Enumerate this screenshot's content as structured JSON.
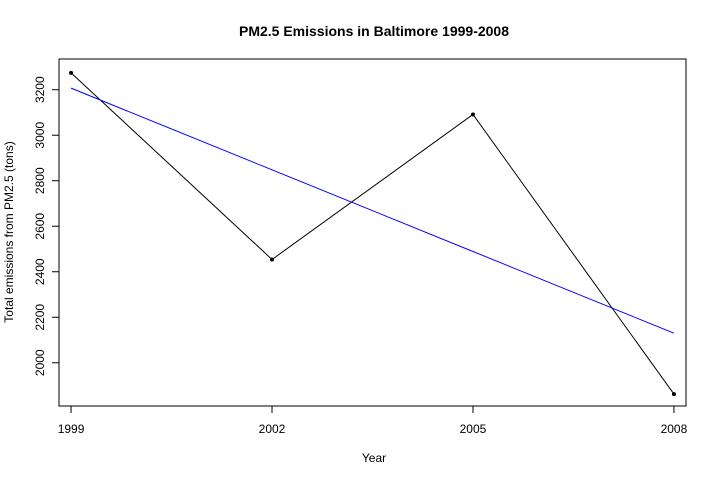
{
  "chart_data": {
    "type": "line",
    "title": "PM2.5 Emissions in Baltimore 1999-2008",
    "xlabel": "Year",
    "ylabel": "Total emissions from PM2.5 (tons)",
    "x": [
      1999,
      2002,
      2005,
      2008
    ],
    "x_ticks": [
      1999,
      2002,
      2005,
      2008
    ],
    "x_tick_labels": [
      "1999",
      "2002",
      "2005",
      "2008"
    ],
    "y_ticks": [
      2000,
      2200,
      2400,
      2600,
      2800,
      3000,
      3200
    ],
    "y_tick_labels": [
      "2000",
      "2200",
      "2400",
      "2600",
      "2800",
      "3000",
      "3200"
    ],
    "xlim": [
      1998.82,
      2008.18
    ],
    "ylim": [
      1810,
      3335
    ],
    "grid": false,
    "series": [
      {
        "values": [
          3274.18,
          2453.92,
          3091.35,
          1862.28
        ],
        "color": "#000000",
        "markers": true
      },
      {
        "values": [
          3207,
          2848,
          2489,
          2130
        ],
        "color": "#0000ff",
        "markers": false
      }
    ]
  }
}
